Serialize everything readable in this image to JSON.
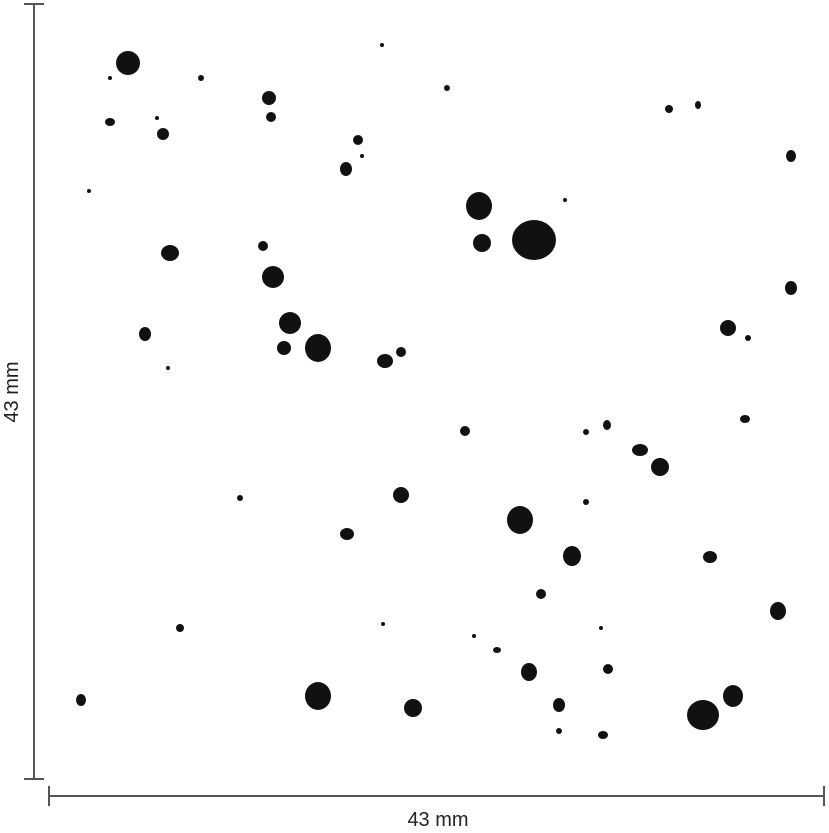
{
  "scale_bars": {
    "vertical_label": "43 mm",
    "horizontal_label": "43 mm"
  },
  "colors": {
    "ink": "#111111",
    "bar": "#555555"
  }
}
